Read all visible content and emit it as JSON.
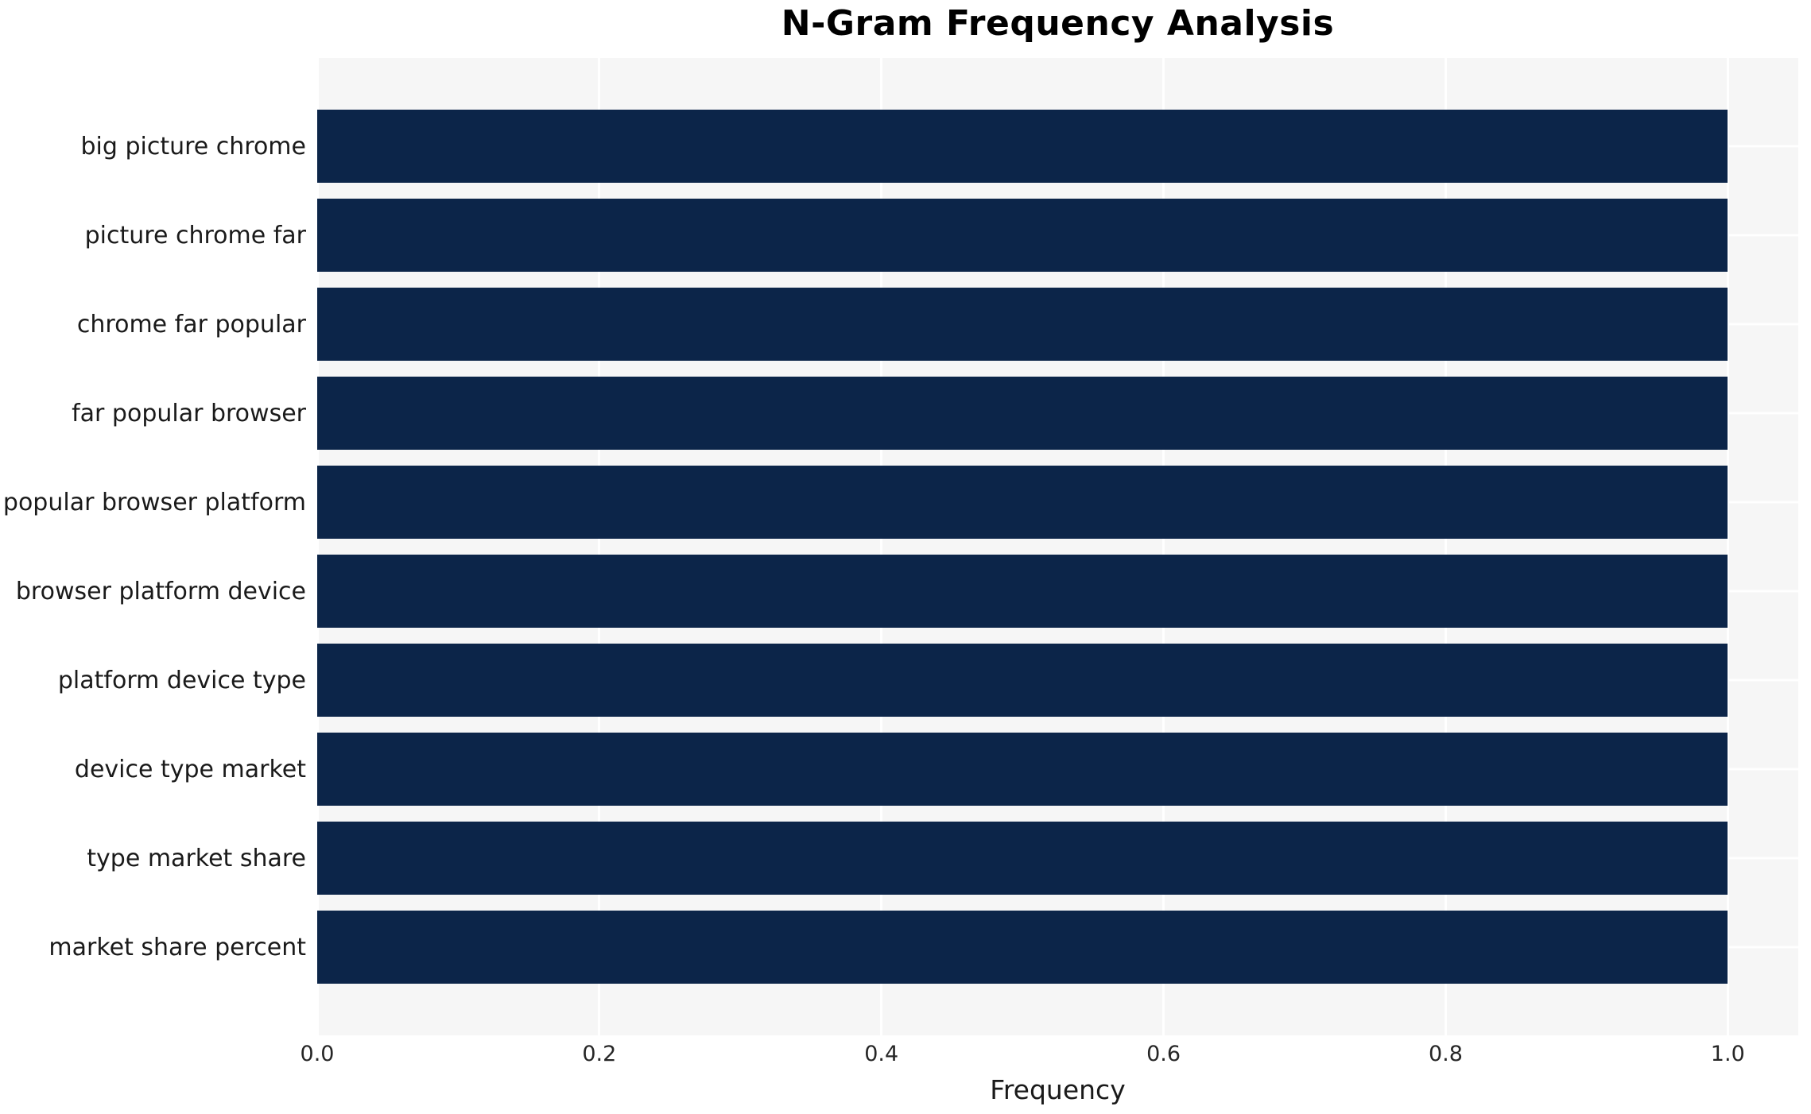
{
  "chart_data": {
    "type": "bar",
    "orientation": "horizontal",
    "title": "N-Gram Frequency Analysis",
    "xlabel": "Frequency",
    "ylabel": "",
    "categories": [
      "big picture chrome",
      "picture chrome far",
      "chrome far popular",
      "far popular browser",
      "popular browser platform",
      "browser platform device",
      "platform device type",
      "device type market",
      "type market share",
      "market share percent"
    ],
    "values": [
      1.0,
      1.0,
      1.0,
      1.0,
      1.0,
      1.0,
      1.0,
      1.0,
      1.0,
      1.0
    ],
    "xlim": [
      0,
      1.05
    ],
    "xtick_values": [
      0.0,
      0.2,
      0.4,
      0.6,
      0.8,
      1.0
    ],
    "xtick_labels": [
      "0.0",
      "0.2",
      "0.4",
      "0.6",
      "0.8",
      "1.0"
    ],
    "grid": true,
    "legend": false,
    "colors": {
      "bar": "#0c2549",
      "plot_background": "#f6f6f6",
      "grid_line": "#ffffff",
      "figure_background": "#ffffff",
      "label_text": "#1a1a1a",
      "tick_text": "#262626",
      "title_text": "#000000"
    }
  }
}
